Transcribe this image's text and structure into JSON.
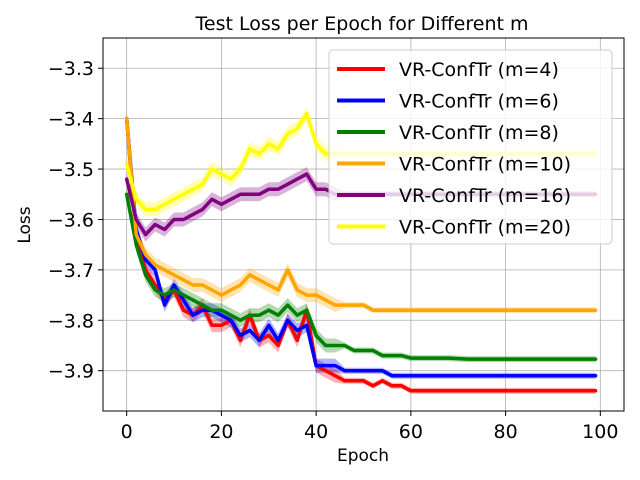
{
  "chart_data": {
    "type": "line",
    "title": "Test Loss per Epoch for Different m",
    "xlabel": "Epoch",
    "ylabel": "Loss",
    "xlim": [
      -5,
      105
    ],
    "ylim": [
      -3.98,
      -3.24
    ],
    "xticks": [
      0,
      20,
      40,
      60,
      80,
      100
    ],
    "yticks": [
      -3.3,
      -3.4,
      -3.5,
      -3.6,
      -3.7,
      -3.8,
      -3.9
    ],
    "ytick_labels": [
      "−3.3",
      "−3.4",
      "−3.5",
      "−3.6",
      "−3.7",
      "−3.8",
      "−3.9"
    ],
    "grid": true,
    "legend_position": "top-right",
    "series": [
      {
        "name": "VR-ConfTr (m=4)",
        "color": "#ff0000",
        "x": [
          0,
          2,
          4,
          6,
          8,
          10,
          12,
          14,
          16,
          18,
          20,
          22,
          24,
          26,
          28,
          30,
          32,
          34,
          36,
          38,
          40,
          42,
          44,
          46,
          48,
          50,
          52,
          54,
          56,
          58,
          60,
          64,
          68,
          72,
          76,
          80,
          84,
          88,
          92,
          96,
          99
        ],
        "values": [
          -3.4,
          -3.64,
          -3.7,
          -3.73,
          -3.76,
          -3.74,
          -3.78,
          -3.79,
          -3.77,
          -3.81,
          -3.81,
          -3.8,
          -3.84,
          -3.79,
          -3.84,
          -3.83,
          -3.85,
          -3.8,
          -3.84,
          -3.78,
          -3.89,
          -3.9,
          -3.91,
          -3.92,
          -3.92,
          -3.92,
          -3.93,
          -3.92,
          -3.93,
          -3.93,
          -3.94,
          -3.94,
          -3.94,
          -3.94,
          -3.94,
          -3.94,
          -3.94,
          -3.94,
          -3.94,
          -3.94,
          -3.94
        ]
      },
      {
        "name": "VR-ConfTr (m=6)",
        "color": "#0000ff",
        "x": [
          0,
          2,
          4,
          6,
          8,
          10,
          12,
          14,
          16,
          18,
          20,
          22,
          24,
          26,
          28,
          30,
          32,
          34,
          36,
          38,
          40,
          42,
          44,
          46,
          48,
          50,
          52,
          54,
          56,
          58,
          60,
          64,
          68,
          72,
          76,
          80,
          84,
          88,
          92,
          96,
          99
        ],
        "values": [
          -3.4,
          -3.62,
          -3.68,
          -3.7,
          -3.77,
          -3.73,
          -3.76,
          -3.79,
          -3.78,
          -3.78,
          -3.79,
          -3.8,
          -3.83,
          -3.82,
          -3.84,
          -3.81,
          -3.84,
          -3.8,
          -3.82,
          -3.81,
          -3.89,
          -3.89,
          -3.89,
          -3.9,
          -3.9,
          -3.9,
          -3.9,
          -3.9,
          -3.91,
          -3.91,
          -3.91,
          -3.91,
          -3.91,
          -3.91,
          -3.91,
          -3.91,
          -3.91,
          -3.91,
          -3.91,
          -3.91,
          -3.91
        ]
      },
      {
        "name": "VR-ConfTr (m=8)",
        "color": "#008000",
        "x": [
          0,
          2,
          4,
          6,
          8,
          10,
          12,
          14,
          16,
          18,
          20,
          22,
          24,
          26,
          28,
          30,
          32,
          34,
          36,
          38,
          40,
          42,
          44,
          46,
          48,
          50,
          52,
          54,
          56,
          58,
          60,
          64,
          68,
          72,
          76,
          80,
          84,
          88,
          92,
          96,
          99
        ],
        "values": [
          -3.55,
          -3.65,
          -3.71,
          -3.74,
          -3.75,
          -3.74,
          -3.75,
          -3.76,
          -3.77,
          -3.78,
          -3.78,
          -3.79,
          -3.8,
          -3.79,
          -3.79,
          -3.78,
          -3.79,
          -3.77,
          -3.79,
          -3.78,
          -3.83,
          -3.85,
          -3.85,
          -3.85,
          -3.86,
          -3.86,
          -3.86,
          -3.87,
          -3.87,
          -3.87,
          -3.875,
          -3.875,
          -3.875,
          -3.877,
          -3.877,
          -3.877,
          -3.877,
          -3.877,
          -3.877,
          -3.877,
          -3.877
        ]
      },
      {
        "name": "VR-ConfTr (m=10)",
        "color": "#ffa500",
        "x": [
          0,
          2,
          4,
          6,
          8,
          10,
          12,
          14,
          16,
          18,
          20,
          22,
          24,
          26,
          28,
          30,
          32,
          34,
          36,
          38,
          40,
          42,
          44,
          46,
          48,
          50,
          52,
          54,
          56,
          58,
          60,
          64,
          68,
          72,
          76,
          80,
          84,
          88,
          92,
          96,
          99
        ],
        "values": [
          -3.4,
          -3.63,
          -3.67,
          -3.69,
          -3.7,
          -3.71,
          -3.72,
          -3.73,
          -3.73,
          -3.74,
          -3.75,
          -3.74,
          -3.73,
          -3.71,
          -3.72,
          -3.73,
          -3.74,
          -3.7,
          -3.74,
          -3.75,
          -3.75,
          -3.76,
          -3.77,
          -3.77,
          -3.77,
          -3.77,
          -3.78,
          -3.78,
          -3.78,
          -3.78,
          -3.78,
          -3.78,
          -3.78,
          -3.78,
          -3.78,
          -3.78,
          -3.78,
          -3.78,
          -3.78,
          -3.78,
          -3.78
        ]
      },
      {
        "name": "VR-ConfTr (m=16)",
        "color": "#800080",
        "x": [
          0,
          2,
          4,
          6,
          8,
          10,
          12,
          14,
          16,
          18,
          20,
          22,
          24,
          26,
          28,
          30,
          32,
          34,
          36,
          38,
          40,
          42,
          44,
          46,
          48,
          50,
          52,
          54,
          56,
          58,
          60,
          64,
          68,
          72,
          76,
          80,
          84,
          88,
          92,
          96,
          99
        ],
        "values": [
          -3.52,
          -3.6,
          -3.63,
          -3.61,
          -3.62,
          -3.6,
          -3.6,
          -3.59,
          -3.58,
          -3.56,
          -3.57,
          -3.56,
          -3.55,
          -3.55,
          -3.55,
          -3.54,
          -3.54,
          -3.53,
          -3.52,
          -3.51,
          -3.54,
          -3.54,
          -3.55,
          -3.55,
          -3.55,
          -3.55,
          -3.55,
          -3.55,
          -3.55,
          -3.55,
          -3.55,
          -3.55,
          -3.55,
          -3.55,
          -3.55,
          -3.55,
          -3.55,
          -3.55,
          -3.55,
          -3.55,
          -3.55
        ]
      },
      {
        "name": "VR-ConfTr (m=20)",
        "color": "#ffff00",
        "x": [
          0,
          2,
          4,
          6,
          8,
          10,
          12,
          14,
          16,
          18,
          20,
          22,
          24,
          26,
          28,
          30,
          32,
          34,
          36,
          38,
          40,
          42,
          44,
          46,
          48,
          50,
          52,
          54,
          56,
          58,
          60,
          64,
          68,
          72,
          76,
          80,
          84,
          88,
          92,
          96,
          99
        ],
        "values": [
          -3.49,
          -3.56,
          -3.58,
          -3.58,
          -3.57,
          -3.56,
          -3.55,
          -3.54,
          -3.53,
          -3.5,
          -3.51,
          -3.52,
          -3.5,
          -3.46,
          -3.47,
          -3.45,
          -3.46,
          -3.43,
          -3.42,
          -3.39,
          -3.45,
          -3.47,
          -3.47,
          -3.47,
          -3.47,
          -3.47,
          -3.47,
          -3.47,
          -3.47,
          -3.47,
          -3.47,
          -3.47,
          -3.47,
          -3.47,
          -3.47,
          -3.47,
          -3.47,
          -3.47,
          -3.47,
          -3.47,
          -3.47
        ]
      }
    ]
  }
}
